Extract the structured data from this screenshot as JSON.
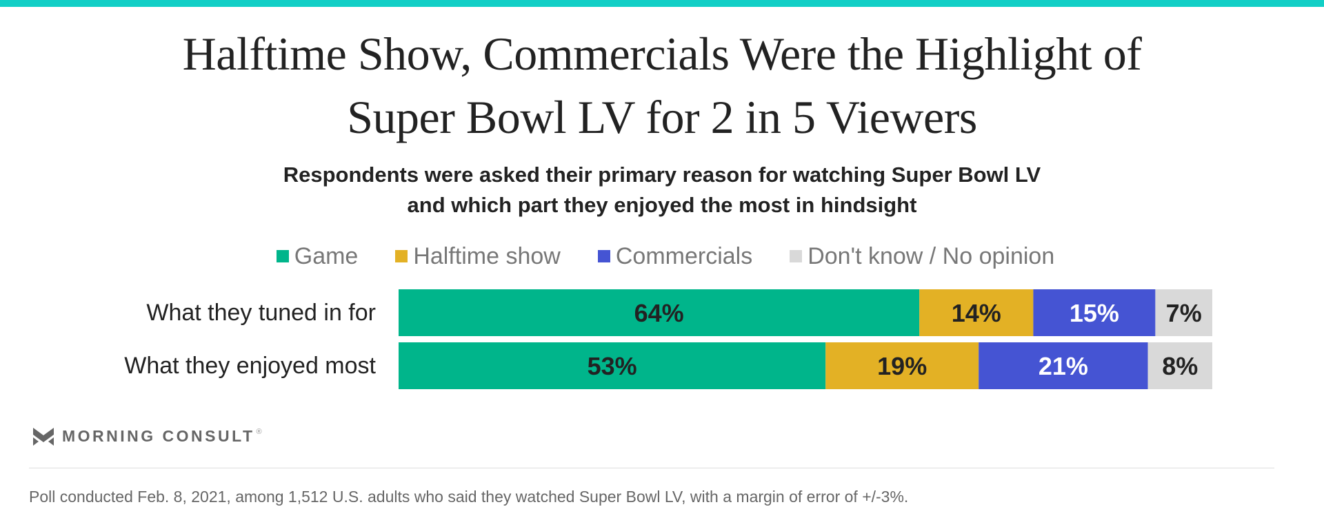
{
  "colors": {
    "accent_bar": "#12cfc6",
    "game": "#00b58b",
    "halftime": "#e3b125",
    "commercials": "#4554d3",
    "dont_know": "#d9d9d9"
  },
  "title_line1": "Halftime Show, Commercials Were the Highlight of",
  "title_line2": "Super Bowl LV for 2 in 5 Viewers",
  "subtitle_line1": "Respondents were asked their primary reason for watching Super Bowl LV",
  "subtitle_line2": "and which part they enjoyed the most in hindsight",
  "chart_data": {
    "type": "bar",
    "orientation": "horizontal",
    "stacked": true,
    "categories": [
      "What they tuned in for",
      "What they enjoyed most"
    ],
    "series": [
      {
        "name": "Game",
        "values": [
          64,
          53
        ],
        "labels": [
          "64%",
          "53%"
        ],
        "color": "#00b58b",
        "label_color": "#222222"
      },
      {
        "name": "Halftime show",
        "values": [
          14,
          19
        ],
        "labels": [
          "14%",
          "19%"
        ],
        "color": "#e3b125",
        "label_color": "#222222"
      },
      {
        "name": "Commercials",
        "values": [
          15,
          21
        ],
        "labels": [
          "15%",
          "21%"
        ],
        "color": "#4554d3",
        "label_color": "#ffffff"
      },
      {
        "name": "Don't know / No opinion",
        "values": [
          7,
          8
        ],
        "labels": [
          "7%",
          "8%"
        ],
        "color": "#d9d9d9",
        "label_color": "#222222"
      }
    ],
    "legend_position": "top",
    "grid": false
  },
  "logo_text": "MORNING CONSULT",
  "logo_mark": "®",
  "footnote": "Poll conducted Feb. 8, 2021, among 1,512 U.S. adults who said they watched Super Bowl LV, with a margin of error of +/-3%."
}
